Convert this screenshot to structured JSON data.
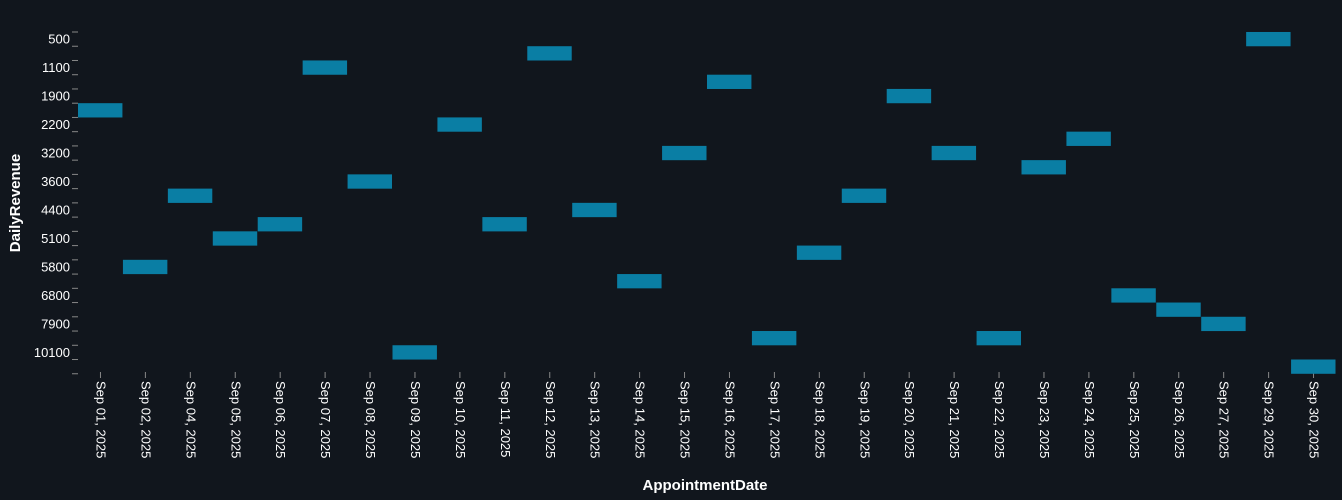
{
  "chart_data": {
    "type": "heatmap",
    "title": "",
    "xlabel": "AppointmentDate",
    "ylabel": "DailyRevenue",
    "grid": false,
    "legend": "none",
    "colors": {
      "background": "#11161d",
      "bar": "#0a7ea4",
      "text": "#ffffff",
      "tick": "#888888"
    },
    "x_categories": [
      "Sep 01, 2025",
      "Sep 02, 2025",
      "Sep 04, 2025",
      "Sep 05, 2025",
      "Sep 06, 2025",
      "Sep 07, 2025",
      "Sep 08, 2025",
      "Sep 09, 2025",
      "Sep 10, 2025",
      "Sep 11, 2025",
      "Sep 12, 2025",
      "Sep 13, 2025",
      "Sep 14, 2025",
      "Sep 15, 2025",
      "Sep 16, 2025",
      "Sep 17, 2025",
      "Sep 18, 2025",
      "Sep 19, 2025",
      "Sep 20, 2025",
      "Sep 21, 2025",
      "Sep 22, 2025",
      "Sep 23, 2025",
      "Sep 24, 2025",
      "Sep 25, 2025",
      "Sep 26, 2025",
      "Sep 27, 2025",
      "Sep 29, 2025",
      "Sep 30, 2025"
    ],
    "y_tick_labels": [
      "500",
      "1100",
      "1900",
      "2200",
      "3200",
      "3600",
      "4400",
      "5100",
      "5800",
      "6800",
      "7900",
      "10100"
    ],
    "points": [
      {
        "x": "Sep 01, 2025",
        "y_index": 5
      },
      {
        "x": "Sep 02, 2025",
        "y_index": 16
      },
      {
        "x": "Sep 04, 2025",
        "y_index": 11
      },
      {
        "x": "Sep 05, 2025",
        "y_index": 14
      },
      {
        "x": "Sep 06, 2025",
        "y_index": 13
      },
      {
        "x": "Sep 07, 2025",
        "y_index": 2
      },
      {
        "x": "Sep 08, 2025",
        "y_index": 10
      },
      {
        "x": "Sep 09, 2025",
        "y_index": 22
      },
      {
        "x": "Sep 10, 2025",
        "y_index": 6
      },
      {
        "x": "Sep 11, 2025",
        "y_index": 13
      },
      {
        "x": "Sep 12, 2025",
        "y_index": 1
      },
      {
        "x": "Sep 13, 2025",
        "y_index": 12
      },
      {
        "x": "Sep 14, 2025",
        "y_index": 17
      },
      {
        "x": "Sep 15, 2025",
        "y_index": 8
      },
      {
        "x": "Sep 16, 2025",
        "y_index": 3
      },
      {
        "x": "Sep 17, 2025",
        "y_index": 21
      },
      {
        "x": "Sep 18, 2025",
        "y_index": 15
      },
      {
        "x": "Sep 19, 2025",
        "y_index": 11
      },
      {
        "x": "Sep 20, 2025",
        "y_index": 4
      },
      {
        "x": "Sep 21, 2025",
        "y_index": 8
      },
      {
        "x": "Sep 22, 2025",
        "y_index": 21
      },
      {
        "x": "Sep 23, 2025",
        "y_index": 9
      },
      {
        "x": "Sep 24, 2025",
        "y_index": 7
      },
      {
        "x": "Sep 25, 2025",
        "y_index": 18
      },
      {
        "x": "Sep 26, 2025",
        "y_index": 19
      },
      {
        "x": "Sep 27, 2025",
        "y_index": 20
      },
      {
        "x": "Sep 29, 2025",
        "y_index": 0
      },
      {
        "x": "Sep 30, 2025",
        "y_index": 23
      }
    ]
  }
}
